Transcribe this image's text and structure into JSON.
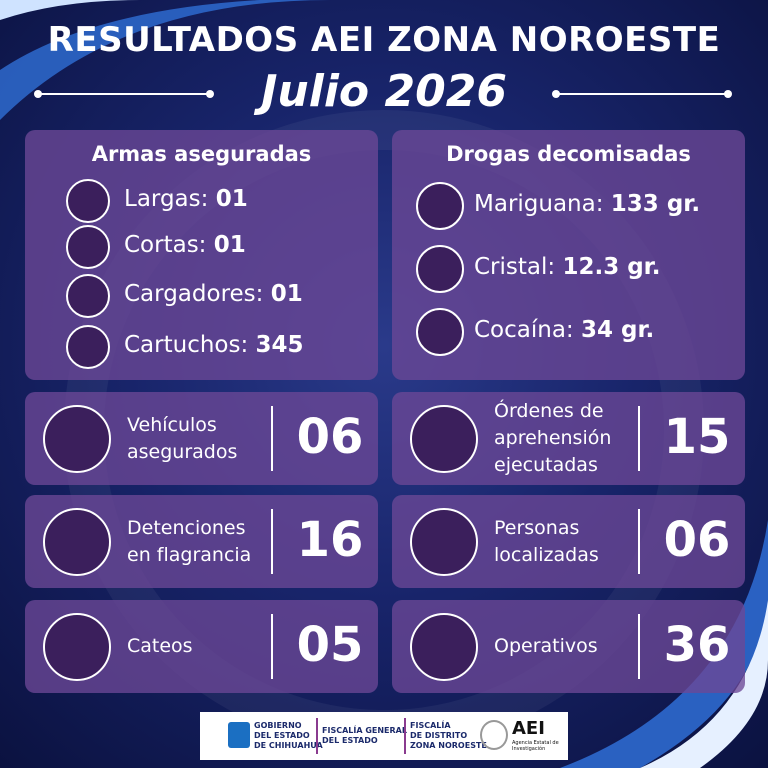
{
  "header": {
    "title_main": "RESULTADOS",
    "title_rest": "AEI ZONA NOROESTE",
    "subtitle": "Julio 2026"
  },
  "weapons": {
    "title": "Armas aseguradas",
    "items": [
      {
        "label": "Largas:",
        "value": "01"
      },
      {
        "label": "Cortas:",
        "value": "01"
      },
      {
        "label": "Cargadores:",
        "value": "01"
      },
      {
        "label": "Cartuchos:",
        "value": "345"
      }
    ]
  },
  "drugs": {
    "title": "Drogas decomisadas",
    "items": [
      {
        "label": "Mariguana:",
        "value": "133 gr."
      },
      {
        "label": "Cristal:",
        "value": "12.3 gr."
      },
      {
        "label": "Cocaína:",
        "value": "34 gr."
      }
    ]
  },
  "stats": [
    {
      "label": [
        "Vehículos",
        "asegurados"
      ],
      "value": "06"
    },
    {
      "label": [
        "Órdenes de",
        "aprehensión",
        "ejecutadas"
      ],
      "value": "15"
    },
    {
      "label": [
        "Detenciones",
        "en flagrancia"
      ],
      "value": "16"
    },
    {
      "label": [
        "Personas",
        "localizadas"
      ],
      "value": "06"
    },
    {
      "label": [
        "Cateos"
      ],
      "value": "05"
    },
    {
      "label": [
        "Operativos"
      ],
      "value": "36"
    }
  ],
  "footer": {
    "gov": [
      "GOBIERNO",
      "DEL ESTADO",
      "DE CHIHUAHUA"
    ],
    "fge": [
      "FISCALÍA GENERAL",
      "DEL ESTADO"
    ],
    "fdz": [
      "FISCALÍA",
      "DE DISTRITO",
      "ZONA NOROESTE"
    ],
    "aei": "AEI",
    "aei_sub": "Agencia Estatal de Investigación"
  }
}
